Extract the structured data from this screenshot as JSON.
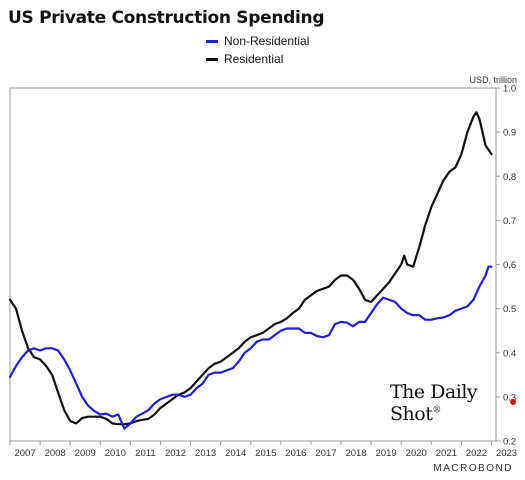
{
  "chart_data": {
    "type": "line",
    "title": "US Private Construction Spending",
    "unit_label": "USD, trillion",
    "ylim": [
      0.2,
      1.0
    ],
    "y_ticks": [
      "1.0",
      "0.9",
      "0.8",
      "0.7",
      "0.6",
      "0.5",
      "0.4",
      "0.3",
      "0.2"
    ],
    "xlim": [
      2007.0,
      2023.15
    ],
    "x_ticks": [
      "2007",
      "2008",
      "2009",
      "2010",
      "2011",
      "2012",
      "2013",
      "2014",
      "2015",
      "2016",
      "2017",
      "2018",
      "2019",
      "2020",
      "2021",
      "2022",
      "2023"
    ],
    "y_axis_position": "right",
    "grid": "none",
    "legend_position": "top-center",
    "series": [
      {
        "name": "Non-Residential",
        "color": "#1f1fd6",
        "points": [
          [
            2007.0,
            0.345
          ],
          [
            2007.2,
            0.37
          ],
          [
            2007.4,
            0.39
          ],
          [
            2007.6,
            0.405
          ],
          [
            2007.8,
            0.41
          ],
          [
            2008.0,
            0.405
          ],
          [
            2008.2,
            0.41
          ],
          [
            2008.4,
            0.41
          ],
          [
            2008.6,
            0.405
          ],
          [
            2008.8,
            0.385
          ],
          [
            2009.0,
            0.36
          ],
          [
            2009.2,
            0.33
          ],
          [
            2009.4,
            0.3
          ],
          [
            2009.6,
            0.28
          ],
          [
            2009.8,
            0.268
          ],
          [
            2010.0,
            0.26
          ],
          [
            2010.2,
            0.262
          ],
          [
            2010.4,
            0.255
          ],
          [
            2010.6,
            0.26
          ],
          [
            2010.8,
            0.228
          ],
          [
            2011.0,
            0.24
          ],
          [
            2011.2,
            0.255
          ],
          [
            2011.4,
            0.262
          ],
          [
            2011.6,
            0.27
          ],
          [
            2011.8,
            0.285
          ],
          [
            2012.0,
            0.295
          ],
          [
            2012.2,
            0.3
          ],
          [
            2012.4,
            0.305
          ],
          [
            2012.6,
            0.305
          ],
          [
            2012.8,
            0.3
          ],
          [
            2013.0,
            0.305
          ],
          [
            2013.2,
            0.32
          ],
          [
            2013.4,
            0.33
          ],
          [
            2013.6,
            0.35
          ],
          [
            2013.8,
            0.355
          ],
          [
            2014.0,
            0.355
          ],
          [
            2014.2,
            0.36
          ],
          [
            2014.4,
            0.365
          ],
          [
            2014.6,
            0.38
          ],
          [
            2014.8,
            0.4
          ],
          [
            2015.0,
            0.41
          ],
          [
            2015.2,
            0.425
          ],
          [
            2015.4,
            0.43
          ],
          [
            2015.6,
            0.43
          ],
          [
            2015.8,
            0.44
          ],
          [
            2016.0,
            0.45
          ],
          [
            2016.2,
            0.455
          ],
          [
            2016.4,
            0.455
          ],
          [
            2016.6,
            0.455
          ],
          [
            2016.8,
            0.445
          ],
          [
            2017.0,
            0.445
          ],
          [
            2017.2,
            0.438
          ],
          [
            2017.4,
            0.435
          ],
          [
            2017.6,
            0.44
          ],
          [
            2017.8,
            0.465
          ],
          [
            2018.0,
            0.47
          ],
          [
            2018.2,
            0.468
          ],
          [
            2018.4,
            0.46
          ],
          [
            2018.6,
            0.47
          ],
          [
            2018.8,
            0.47
          ],
          [
            2019.0,
            0.49
          ],
          [
            2019.2,
            0.51
          ],
          [
            2019.4,
            0.525
          ],
          [
            2019.6,
            0.52
          ],
          [
            2019.8,
            0.515
          ],
          [
            2020.0,
            0.5
          ],
          [
            2020.2,
            0.49
          ],
          [
            2020.4,
            0.485
          ],
          [
            2020.6,
            0.485
          ],
          [
            2020.8,
            0.475
          ],
          [
            2021.0,
            0.475
          ],
          [
            2021.2,
            0.478
          ],
          [
            2021.4,
            0.48
          ],
          [
            2021.6,
            0.485
          ],
          [
            2021.8,
            0.495
          ],
          [
            2022.0,
            0.5
          ],
          [
            2022.2,
            0.505
          ],
          [
            2022.4,
            0.52
          ],
          [
            2022.6,
            0.55
          ],
          [
            2022.8,
            0.575
          ],
          [
            2022.9,
            0.595
          ],
          [
            2023.0,
            0.595
          ]
        ]
      },
      {
        "name": "Residential",
        "color": "#111111",
        "points": [
          [
            2007.0,
            0.52
          ],
          [
            2007.2,
            0.5
          ],
          [
            2007.4,
            0.45
          ],
          [
            2007.6,
            0.41
          ],
          [
            2007.8,
            0.39
          ],
          [
            2008.0,
            0.385
          ],
          [
            2008.2,
            0.37
          ],
          [
            2008.4,
            0.35
          ],
          [
            2008.6,
            0.31
          ],
          [
            2008.8,
            0.27
          ],
          [
            2009.0,
            0.245
          ],
          [
            2009.2,
            0.24
          ],
          [
            2009.4,
            0.252
          ],
          [
            2009.6,
            0.255
          ],
          [
            2009.8,
            0.255
          ],
          [
            2010.0,
            0.255
          ],
          [
            2010.2,
            0.25
          ],
          [
            2010.4,
            0.24
          ],
          [
            2010.6,
            0.238
          ],
          [
            2010.8,
            0.238
          ],
          [
            2011.0,
            0.24
          ],
          [
            2011.2,
            0.245
          ],
          [
            2011.4,
            0.248
          ],
          [
            2011.6,
            0.25
          ],
          [
            2011.8,
            0.26
          ],
          [
            2012.0,
            0.275
          ],
          [
            2012.2,
            0.285
          ],
          [
            2012.4,
            0.295
          ],
          [
            2012.6,
            0.305
          ],
          [
            2012.8,
            0.31
          ],
          [
            2013.0,
            0.32
          ],
          [
            2013.2,
            0.335
          ],
          [
            2013.4,
            0.35
          ],
          [
            2013.6,
            0.365
          ],
          [
            2013.8,
            0.375
          ],
          [
            2014.0,
            0.38
          ],
          [
            2014.2,
            0.39
          ],
          [
            2014.4,
            0.4
          ],
          [
            2014.6,
            0.41
          ],
          [
            2014.8,
            0.425
          ],
          [
            2015.0,
            0.435
          ],
          [
            2015.2,
            0.44
          ],
          [
            2015.4,
            0.445
          ],
          [
            2015.6,
            0.455
          ],
          [
            2015.8,
            0.465
          ],
          [
            2016.0,
            0.47
          ],
          [
            2016.2,
            0.478
          ],
          [
            2016.4,
            0.49
          ],
          [
            2016.6,
            0.5
          ],
          [
            2016.8,
            0.52
          ],
          [
            2017.0,
            0.53
          ],
          [
            2017.2,
            0.54
          ],
          [
            2017.4,
            0.545
          ],
          [
            2017.6,
            0.55
          ],
          [
            2017.8,
            0.565
          ],
          [
            2018.0,
            0.575
          ],
          [
            2018.2,
            0.575
          ],
          [
            2018.4,
            0.565
          ],
          [
            2018.6,
            0.545
          ],
          [
            2018.8,
            0.52
          ],
          [
            2019.0,
            0.515
          ],
          [
            2019.2,
            0.53
          ],
          [
            2019.4,
            0.545
          ],
          [
            2019.6,
            0.56
          ],
          [
            2019.8,
            0.58
          ],
          [
            2020.0,
            0.6
          ],
          [
            2020.1,
            0.62
          ],
          [
            2020.2,
            0.6
          ],
          [
            2020.4,
            0.595
          ],
          [
            2020.6,
            0.64
          ],
          [
            2020.8,
            0.69
          ],
          [
            2021.0,
            0.73
          ],
          [
            2021.2,
            0.76
          ],
          [
            2021.4,
            0.79
          ],
          [
            2021.6,
            0.81
          ],
          [
            2021.8,
            0.82
          ],
          [
            2022.0,
            0.85
          ],
          [
            2022.2,
            0.9
          ],
          [
            2022.4,
            0.935
          ],
          [
            2022.5,
            0.945
          ],
          [
            2022.6,
            0.93
          ],
          [
            2022.7,
            0.9
          ],
          [
            2022.8,
            0.87
          ],
          [
            2022.9,
            0.86
          ],
          [
            2023.0,
            0.85
          ]
        ]
      }
    ]
  },
  "brand": "The Daily Shot",
  "brand_mark": "®",
  "footer": "MACROBOND"
}
